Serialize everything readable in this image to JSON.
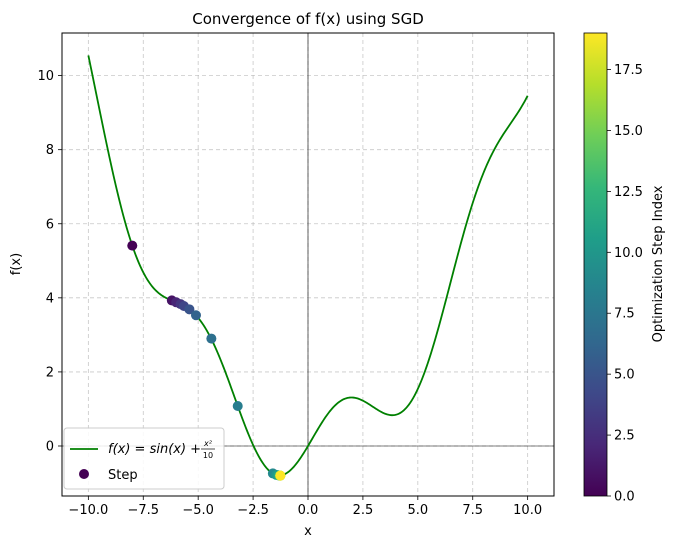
{
  "chart_data": {
    "type": "line",
    "title": "Convergence of f(x) using SGD",
    "xlabel": "x",
    "ylabel": "f(x)",
    "xlim": [
      -11.2,
      11.2
    ],
    "ylim": [
      -1.35,
      11.15
    ],
    "xticks": [
      -10.0,
      -7.5,
      -5.0,
      -2.5,
      0.0,
      2.5,
      5.0,
      7.5,
      10.0
    ],
    "xtick_labels": [
      "−10.0",
      "−7.5",
      "−5.0",
      "−2.5",
      "0.0",
      "2.5",
      "5.0",
      "7.5",
      "10.0"
    ],
    "yticks": [
      0,
      2,
      4,
      6,
      8,
      10
    ],
    "ytick_labels": [
      "0",
      "2",
      "4",
      "6",
      "8",
      "10"
    ],
    "grid": true,
    "legend_position": "lower-left",
    "function": {
      "name": "f(x) = sin(x) + x²/10",
      "legend_label": "f(x) = sin(x) + ",
      "legend_frac_num": "x²",
      "legend_frac_den": "10",
      "color": "#008000",
      "x_range": [
        -10,
        10
      ]
    },
    "steps": {
      "name": "Step",
      "x": [
        -8.0,
        -6.2,
        -6.0,
        -5.8,
        -5.65,
        -5.4,
        -5.1,
        -4.4,
        -3.2,
        -1.6,
        -1.45,
        -1.35,
        -1.3,
        -1.28,
        -1.27,
        -1.26,
        -1.26,
        -1.26,
        -1.26,
        -1.26
      ],
      "y": [
        5.41,
        3.93,
        3.88,
        3.83,
        3.78,
        3.69,
        3.53,
        2.9,
        1.08,
        -0.74,
        -0.78,
        -0.79,
        -0.8,
        -0.8,
        -0.8,
        -0.8,
        -0.8,
        -0.8,
        -0.8,
        -0.8
      ],
      "step_index": [
        0,
        1,
        2,
        3,
        4,
        5,
        6,
        7,
        8,
        9,
        10,
        11,
        12,
        13,
        14,
        15,
        16,
        17,
        18,
        19
      ]
    },
    "colorbar": {
      "label": "Optimization Step Index",
      "range": [
        0,
        19
      ],
      "ticks": [
        0.0,
        2.5,
        5.0,
        7.5,
        10.0,
        12.5,
        15.0,
        17.5
      ],
      "tick_labels": [
        "0.0",
        "2.5",
        "5.0",
        "7.5",
        "10.0",
        "12.5",
        "15.0",
        "17.5"
      ],
      "colormap": [
        "#440154",
        "#482878",
        "#3e4989",
        "#31688e",
        "#26828e",
        "#1f9e89",
        "#35b779",
        "#6ece58",
        "#b5de2b",
        "#fde725"
      ]
    }
  }
}
